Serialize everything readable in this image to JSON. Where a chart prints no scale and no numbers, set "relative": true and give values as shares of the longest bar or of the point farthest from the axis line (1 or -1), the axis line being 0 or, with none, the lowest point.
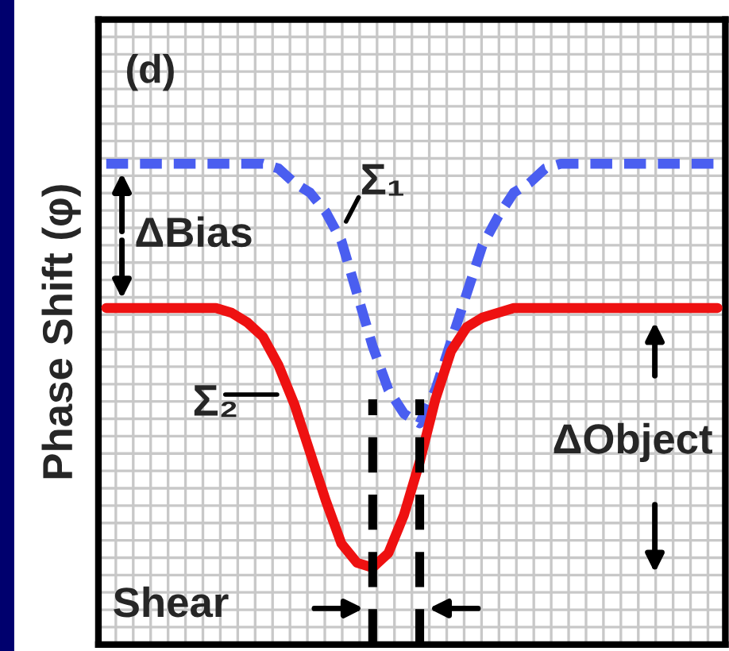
{
  "chart_data": {
    "type": "line",
    "relative": true,
    "ylabel": "Phase Shift (φ)",
    "categories": [
      null,
      null,
      null,
      null,
      null,
      null,
      null,
      null,
      null,
      null,
      null,
      null,
      null,
      null,
      null,
      null,
      null,
      null,
      null,
      null,
      null,
      null,
      null,
      null,
      null,
      null,
      null,
      null,
      null,
      null,
      null,
      null,
      null,
      null,
      null,
      null,
      null,
      null,
      null,
      null
    ],
    "series": [
      {
        "name": "Σ₁",
        "color": "#4a5ef0",
        "line_style": "dashed",
        "values": [
          1.0,
          1.0,
          1.0,
          1.0,
          1.0,
          1.0,
          1.0,
          1.0,
          1.0,
          1.0,
          1.0,
          0.99,
          0.96,
          0.94,
          0.9,
          0.84,
          0.73,
          0.62,
          0.53,
          0.48,
          0.46,
          0.53,
          0.63,
          0.73,
          0.83,
          0.89,
          0.94,
          0.96,
          0.99,
          1.0,
          1.0,
          1.0,
          1.0,
          1.0,
          1.0,
          1.0,
          1.0,
          1.0,
          1.0,
          1.0
        ]
      },
      {
        "name": "Σ₂",
        "color": "#ee1111",
        "line_style": "solid",
        "values": [
          0.7,
          0.7,
          0.7,
          0.7,
          0.7,
          0.7,
          0.7,
          0.7,
          0.69,
          0.67,
          0.64,
          0.58,
          0.5,
          0.4,
          0.3,
          0.21,
          0.17,
          0.16,
          0.19,
          0.27,
          0.38,
          0.51,
          0.61,
          0.66,
          0.68,
          0.69,
          0.7,
          0.7,
          0.7,
          0.7,
          0.7,
          0.7,
          0.7,
          0.7,
          0.7,
          0.7,
          0.7,
          0.7,
          0.7,
          0.7
        ]
      }
    ],
    "annotations": [
      "(d)",
      "ΔBias",
      "ΔObject",
      "Shear"
    ],
    "grid": true,
    "legend": false,
    "marker": "none"
  }
}
